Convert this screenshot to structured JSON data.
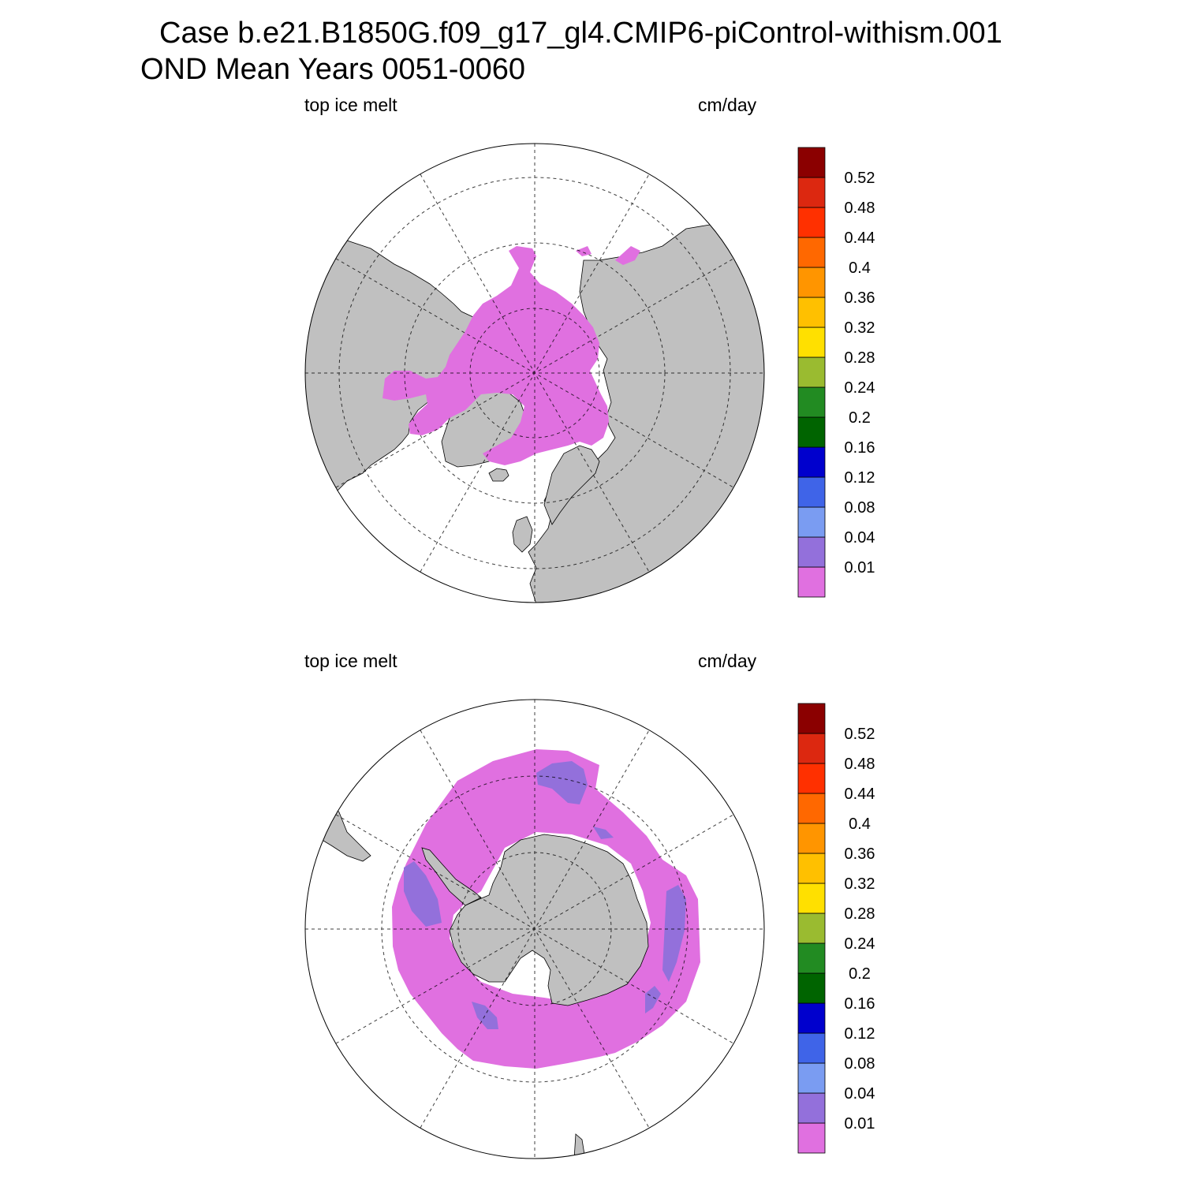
{
  "title": {
    "line1": "Case b.e21.B1850G.f09_g17_gl4.CMIP6-piControl-withism.001",
    "line2": "OND Mean   Years 0051-0060"
  },
  "colors": {
    "land": "#c0c0c0",
    "ice_melt_fill": "#e070e0",
    "ice_melt_low": "#9370db"
  },
  "colorbar": {
    "boundaries": [
      "0.01",
      "0.04",
      "0.08",
      "0.12",
      "0.16",
      "0.2",
      "0.24",
      "0.28",
      "0.32",
      "0.36",
      "0.4",
      "0.44",
      "0.48",
      "0.52"
    ],
    "colors": [
      "#e070e0",
      "#9370db",
      "#7a9cf2",
      "#3f64e8",
      "#0000cd",
      "#006400",
      "#228b22",
      "#9abb30",
      "#ffe000",
      "#ffc000",
      "#ff9500",
      "#ff6800",
      "#ff3000",
      "#dc2810",
      "#8b0000"
    ]
  },
  "panels": [
    {
      "id": "north",
      "hemisphere": "Northern Hemisphere",
      "left_label": "top ice melt",
      "right_label": "cm/day"
    },
    {
      "id": "south",
      "hemisphere": "Southern Hemisphere",
      "left_label": "top ice melt",
      "right_label": "cm/day"
    }
  ]
}
